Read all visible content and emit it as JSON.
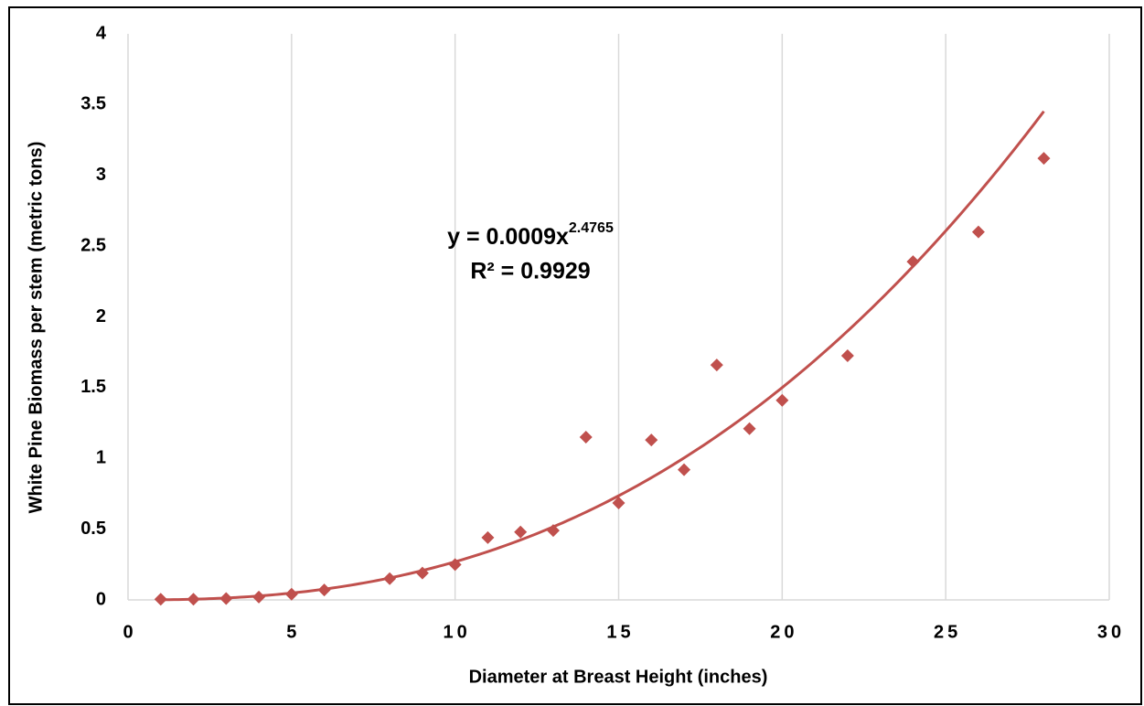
{
  "chart_data": {
    "type": "scatter",
    "x_label": "Diameter at Breast Height (inches)",
    "y_label": "White Pine Biomass per stem (metric tons)",
    "x": [
      1,
      2,
      3,
      4,
      5,
      6,
      8,
      9,
      10,
      11,
      12,
      13,
      14,
      15,
      16,
      17,
      18,
      19,
      20,
      22,
      24,
      26,
      28
    ],
    "series": [
      {
        "color": "#c0504d",
        "values": [
          0.005,
          0.005,
          0.01,
          0.02,
          0.04,
          0.07,
          0.15,
          0.19,
          0.25,
          0.44,
          0.48,
          0.49,
          1.15,
          0.685,
          1.13,
          0.92,
          1.66,
          1.21,
          1.41,
          1.725,
          2.39,
          2.6,
          3.12
        ]
      }
    ],
    "trendline": {
      "kind": "power",
      "color": "#c0504d",
      "coefficient": 0.0009,
      "exponent": 2.4765,
      "r_squared": 0.9929,
      "label": "y = 0.0009x",
      "exponent_label": "2.4765",
      "r_squared_label": "R² = 0.9929"
    },
    "xlim": [
      0,
      30
    ],
    "xticks": [
      0,
      5,
      10,
      15,
      20,
      25,
      30
    ],
    "ylim": [
      0,
      4
    ],
    "yticks": [
      0,
      0.5,
      1,
      1.5,
      2,
      2.5,
      3,
      3.5,
      4
    ],
    "grid": "x"
  }
}
